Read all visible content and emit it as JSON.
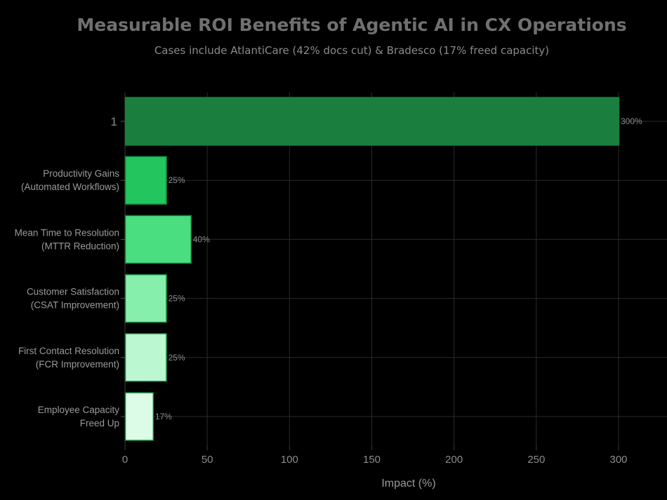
{
  "chart_data": {
    "type": "bar",
    "orientation": "horizontal",
    "title": "Measurable ROI Benefits of Agentic AI in CX Operations",
    "subtitle": "Cases include AtlantiCare (42% docs cut) & Bradesco (17% freed capacity)",
    "xlabel": "Impact (%)",
    "ylabel": "",
    "xlim": [
      0,
      329
    ],
    "xticks": [
      0,
      50,
      100,
      150,
      200,
      250,
      300
    ],
    "grid": true,
    "categories": [
      [
        "1"
      ],
      [
        "Productivity Gains",
        "(Automated Workflows)"
      ],
      [
        "Mean Time to Resolution",
        "(MTTR Reduction)"
      ],
      [
        "Customer Satisfaction",
        "(CSAT Improvement)"
      ],
      [
        "First Contact Resolution",
        "(FCR Improvement)"
      ],
      [
        "Employee Capacity",
        "Freed Up"
      ]
    ],
    "values": [
      300,
      25,
      40,
      25,
      25,
      17
    ],
    "data_labels": [
      "300%",
      "25%",
      "40%",
      "25%",
      "25%",
      "17%"
    ],
    "colors": [
      "#1a7f3e",
      "#22c55e",
      "#4ade80",
      "#86efac",
      "#bbf7d0",
      "#dcfce7"
    ],
    "bar_border_color": "#15803d",
    "background": "#000000"
  }
}
